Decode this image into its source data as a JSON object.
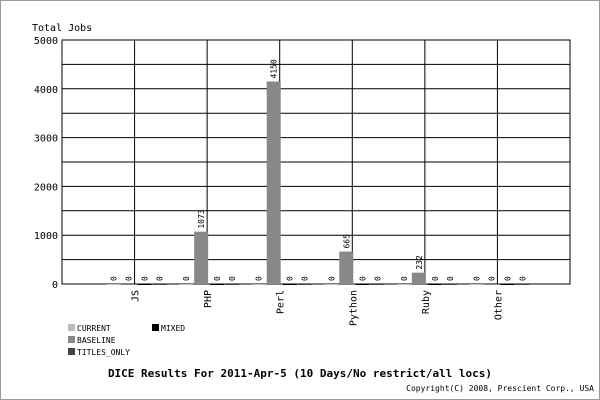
{
  "chart_data": {
    "type": "bar",
    "title": "DICE Results For 2011-Apr-5 (10 Days/No restrict/all locs)",
    "y_label": "Total Jobs",
    "copyright": "Copyright(C) 2008, Prescient Corp., USA",
    "categories": [
      "JS",
      "PHP",
      "Perl",
      "Python",
      "Ruby",
      "Other"
    ],
    "series": [
      {
        "name": "CURRENT",
        "color": "#bbbbbb",
        "values": [
          0,
          0,
          0,
          0,
          0,
          0
        ]
      },
      {
        "name": "BASELINE",
        "color": "#888888",
        "values": [
          0,
          1073,
          4150,
          665,
          232,
          0
        ]
      },
      {
        "name": "MIXED",
        "color": "#000000",
        "values": [
          0,
          0,
          0,
          0,
          0,
          0
        ]
      },
      {
        "name": "TITLES_ONLY",
        "color": "#444444",
        "values": [
          0,
          0,
          0,
          0,
          0,
          0
        ]
      }
    ],
    "ylim": [
      0,
      5000
    ],
    "yticks": [
      0,
      1000,
      2000,
      3000,
      4000,
      5000
    ],
    "y_minor_ticks": [
      500,
      1500,
      2500,
      3500,
      4500
    ],
    "grid": true
  }
}
